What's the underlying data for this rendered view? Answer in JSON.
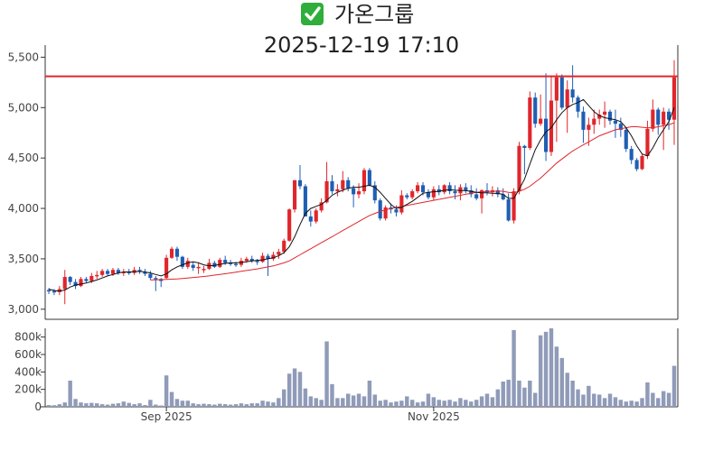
{
  "title": {
    "check_glyph": "✅",
    "name": "가온그룹",
    "datetime": "2025-12-19 17:10"
  },
  "colors": {
    "up": "#e0262b",
    "down": "#1f5fb4",
    "ma_short": "#111111",
    "ma_long": "#e0262b",
    "ref_line": "#e0262b",
    "volume": "#8f9bb8",
    "axis": "#333333",
    "check_bg": "#2fae3c"
  },
  "chart_data": [
    {
      "type": "candlestick",
      "title": "",
      "ylim": [
        2900,
        5620
      ],
      "y_ticks": [
        3000,
        3500,
        4000,
        4500,
        5000,
        5500
      ],
      "y_tick_labels": [
        "3,000",
        "3,500",
        "4,000",
        "4,500",
        "5,000",
        "5,500"
      ],
      "reference_line": 5310,
      "grid": false,
      "series_note": "daily OHLC, about 118 sessions",
      "ohlc": [
        [
          3190,
          3210,
          3150,
          3180
        ],
        [
          3180,
          3200,
          3140,
          3170
        ],
        [
          3170,
          3230,
          3140,
          3200
        ],
        [
          3200,
          3390,
          3050,
          3320
        ],
        [
          3320,
          3330,
          3240,
          3270
        ],
        [
          3270,
          3300,
          3200,
          3230
        ],
        [
          3230,
          3320,
          3220,
          3300
        ],
        [
          3300,
          3320,
          3260,
          3280
        ],
        [
          3280,
          3360,
          3260,
          3330
        ],
        [
          3330,
          3380,
          3300,
          3340
        ],
        [
          3340,
          3400,
          3320,
          3380
        ],
        [
          3380,
          3400,
          3330,
          3350
        ],
        [
          3350,
          3410,
          3330,
          3390
        ],
        [
          3390,
          3410,
          3340,
          3360
        ],
        [
          3360,
          3400,
          3330,
          3370
        ],
        [
          3370,
          3400,
          3340,
          3360
        ],
        [
          3360,
          3420,
          3340,
          3390
        ],
        [
          3390,
          3420,
          3350,
          3370
        ],
        [
          3370,
          3400,
          3330,
          3350
        ],
        [
          3350,
          3380,
          3290,
          3310
        ],
        [
          3310,
          3330,
          3180,
          3300
        ],
        [
          3300,
          3310,
          3220,
          3280
        ],
        [
          3310,
          3540,
          3300,
          3510
        ],
        [
          3510,
          3620,
          3500,
          3600
        ],
        [
          3600,
          3620,
          3480,
          3520
        ],
        [
          3520,
          3530,
          3400,
          3420
        ],
        [
          3420,
          3510,
          3400,
          3480
        ],
        [
          3440,
          3470,
          3380,
          3410
        ],
        [
          3410,
          3460,
          3350,
          3420
        ],
        [
          3390,
          3430,
          3360,
          3400
        ],
        [
          3400,
          3500,
          3390,
          3460
        ],
        [
          3460,
          3480,
          3410,
          3420
        ],
        [
          3420,
          3510,
          3410,
          3490
        ],
        [
          3490,
          3530,
          3440,
          3460
        ],
        [
          3460,
          3490,
          3430,
          3450
        ],
        [
          3450,
          3470,
          3420,
          3440
        ],
        [
          3440,
          3510,
          3420,
          3480
        ],
        [
          3480,
          3520,
          3460,
          3500
        ],
        [
          3500,
          3530,
          3460,
          3480
        ],
        [
          3480,
          3500,
          3440,
          3470
        ],
        [
          3470,
          3560,
          3460,
          3530
        ],
        [
          3530,
          3550,
          3330,
          3500
        ],
        [
          3500,
          3570,
          3480,
          3540
        ],
        [
          3540,
          3600,
          3500,
          3570
        ],
        [
          3570,
          3700,
          3550,
          3680
        ],
        [
          3680,
          4000,
          3670,
          3990
        ],
        [
          3990,
          4280,
          3960,
          4280
        ],
        [
          4280,
          4430,
          4190,
          4220
        ],
        [
          4220,
          4240,
          3920,
          3920
        ],
        [
          3920,
          3980,
          3820,
          3870
        ],
        [
          3870,
          4000,
          3850,
          3980
        ],
        [
          3980,
          4100,
          3960,
          4060
        ],
        [
          4060,
          4460,
          4050,
          4270
        ],
        [
          4270,
          4330,
          4140,
          4170
        ],
        [
          4170,
          4240,
          4120,
          4190
        ],
        [
          4190,
          4370,
          4160,
          4280
        ],
        [
          4280,
          4310,
          4170,
          4200
        ],
        [
          4200,
          4230,
          4010,
          4140
        ],
        [
          4140,
          4250,
          4100,
          4170
        ],
        [
          4170,
          4400,
          4140,
          4380
        ],
        [
          4380,
          4400,
          4220,
          4230
        ],
        [
          4230,
          4270,
          4050,
          4080
        ],
        [
          4080,
          4100,
          3880,
          3900
        ],
        [
          3900,
          4030,
          3880,
          4010
        ],
        [
          4010,
          4050,
          3950,
          3990
        ],
        [
          3990,
          4030,
          3920,
          3960
        ],
        [
          3960,
          4180,
          3940,
          4130
        ],
        [
          4130,
          4150,
          4090,
          4110
        ],
        [
          4110,
          4190,
          4090,
          4170
        ],
        [
          4170,
          4260,
          4150,
          4230
        ],
        [
          4230,
          4260,
          4130,
          4160
        ],
        [
          4160,
          4190,
          4090,
          4110
        ],
        [
          4110,
          4220,
          4080,
          4190
        ],
        [
          4190,
          4230,
          4130,
          4160
        ],
        [
          4160,
          4240,
          4140,
          4230
        ],
        [
          4230,
          4260,
          4140,
          4170
        ],
        [
          4170,
          4230,
          4090,
          4150
        ],
        [
          4150,
          4240,
          4080,
          4210
        ],
        [
          4210,
          4250,
          4150,
          4180
        ],
        [
          4180,
          4230,
          4110,
          4140
        ],
        [
          4140,
          4200,
          4080,
          4100
        ],
        [
          4100,
          4190,
          3950,
          4180
        ],
        [
          4180,
          4250,
          4130,
          4160
        ],
        [
          4160,
          4220,
          4120,
          4180
        ],
        [
          4180,
          4210,
          4110,
          4140
        ],
        [
          4140,
          4200,
          4080,
          4090
        ],
        [
          4090,
          4150,
          3870,
          3880
        ],
        [
          3880,
          4200,
          3850,
          4170
        ],
        [
          4170,
          4660,
          4140,
          4620
        ],
        [
          4620,
          4630,
          4340,
          4600
        ],
        [
          4600,
          5160,
          4580,
          5100
        ],
        [
          5100,
          5150,
          4800,
          4840
        ],
        [
          4840,
          5130,
          4820,
          4890
        ],
        [
          4890,
          5340,
          4470,
          4560
        ],
        [
          4560,
          5320,
          4520,
          5070
        ],
        [
          5070,
          5340,
          4660,
          5300
        ],
        [
          5300,
          5330,
          4980,
          5000
        ],
        [
          5000,
          5270,
          4750,
          5180
        ],
        [
          5180,
          5420,
          5050,
          5100
        ],
        [
          5100,
          5120,
          4900,
          4960
        ],
        [
          4960,
          5010,
          4650,
          4780
        ],
        [
          4780,
          4900,
          4620,
          4830
        ],
        [
          4830,
          4980,
          4740,
          4890
        ],
        [
          4890,
          4980,
          4830,
          4930
        ],
        [
          4930,
          5060,
          4800,
          4960
        ],
        [
          4960,
          4980,
          4830,
          4870
        ],
        [
          4870,
          4980,
          4700,
          4840
        ],
        [
          4840,
          4900,
          4710,
          4780
        ],
        [
          4780,
          4800,
          4560,
          4590
        ],
        [
          4590,
          4620,
          4440,
          4480
        ],
        [
          4480,
          4500,
          4370,
          4390
        ],
        [
          4390,
          4540,
          4380,
          4520
        ],
        [
          4520,
          4870,
          4490,
          4790
        ],
        [
          4790,
          5080,
          4760,
          4980
        ],
        [
          4980,
          5000,
          4730,
          4830
        ],
        [
          4830,
          5000,
          4580,
          4960
        ],
        [
          4960,
          4990,
          4780,
          4880
        ],
        [
          4880,
          5470,
          4630,
          5300
        ]
      ],
      "ma_short": [
        3200,
        3185,
        3180,
        3190,
        3220,
        3240,
        3250,
        3260,
        3275,
        3290,
        3310,
        3330,
        3345,
        3360,
        3370,
        3370,
        3372,
        3375,
        3370,
        3360,
        3345,
        3330,
        3350,
        3390,
        3420,
        3440,
        3460,
        3470,
        3460,
        3440,
        3430,
        3435,
        3445,
        3455,
        3460,
        3460,
        3465,
        3472,
        3480,
        3485,
        3490,
        3500,
        3510,
        3530,
        3560,
        3620,
        3720,
        3840,
        3950,
        4000,
        4020,
        4040,
        4080,
        4130,
        4160,
        4180,
        4200,
        4210,
        4210,
        4220,
        4230,
        4210,
        4160,
        4100,
        4040,
        4000,
        4010,
        4040,
        4070,
        4110,
        4150,
        4160,
        4165,
        4170,
        4180,
        4185,
        4180,
        4178,
        4176,
        4170,
        4160,
        4155,
        4155,
        4150,
        4148,
        4140,
        4100,
        4100,
        4190,
        4290,
        4440,
        4580,
        4680,
        4760,
        4800,
        4880,
        4950,
        5000,
        5030,
        5050,
        5080,
        5020,
        4960,
        4920,
        4900,
        4890,
        4880,
        4860,
        4800,
        4720,
        4620,
        4540,
        4520,
        4600,
        4700,
        4780,
        4860,
        5000
      ],
      "ma_long": [
        null,
        null,
        null,
        null,
        null,
        null,
        null,
        null,
        null,
        null,
        null,
        null,
        null,
        null,
        null,
        null,
        null,
        null,
        null,
        3290,
        3292,
        3294,
        3296,
        3298,
        3300,
        3305,
        3310,
        3315,
        3320,
        3325,
        3330,
        3338,
        3345,
        3352,
        3360,
        3368,
        3376,
        3384,
        3392,
        3400,
        3410,
        3420,
        3430,
        3445,
        3460,
        3480,
        3510,
        3540,
        3570,
        3600,
        3630,
        3660,
        3690,
        3720,
        3750,
        3780,
        3810,
        3840,
        3870,
        3900,
        3930,
        3950,
        3970,
        3985,
        4000,
        4010,
        4020,
        4030,
        4040,
        4050,
        4060,
        4070,
        4080,
        4090,
        4100,
        4110,
        4120,
        4130,
        4140,
        4150,
        4160,
        4165,
        4168,
        4170,
        4172,
        4170,
        4160,
        4155,
        4170,
        4190,
        4220,
        4260,
        4300,
        4350,
        4400,
        4450,
        4490,
        4530,
        4570,
        4600,
        4630,
        4660,
        4690,
        4720,
        4740,
        4760,
        4780,
        4790,
        4800,
        4810,
        4810,
        4805,
        4800,
        4800,
        4810,
        4820,
        4830,
        4850
      ]
    },
    {
      "type": "bar",
      "title": "",
      "ylim": [
        0,
        900000
      ],
      "y_ticks": [
        0,
        200000,
        400000,
        600000,
        800000
      ],
      "y_tick_labels": [
        "0",
        "200k",
        "400k",
        "600k",
        "800k"
      ],
      "x_tick_labels": [
        "Sep 2025",
        "Nov 2025"
      ],
      "x_tick_index": [
        22,
        72
      ],
      "values": [
        20000,
        18000,
        30000,
        50000,
        300000,
        90000,
        50000,
        40000,
        45000,
        40000,
        30000,
        25000,
        35000,
        40000,
        60000,
        45000,
        30000,
        40000,
        20000,
        80000,
        25000,
        15000,
        360000,
        170000,
        90000,
        70000,
        70000,
        40000,
        30000,
        35000,
        30000,
        25000,
        35000,
        30000,
        25000,
        30000,
        40000,
        30000,
        40000,
        40000,
        70000,
        60000,
        50000,
        100000,
        200000,
        380000,
        440000,
        400000,
        210000,
        120000,
        100000,
        80000,
        750000,
        260000,
        100000,
        100000,
        150000,
        130000,
        150000,
        120000,
        300000,
        140000,
        70000,
        80000,
        50000,
        60000,
        70000,
        120000,
        80000,
        50000,
        60000,
        150000,
        110000,
        80000,
        70000,
        80000,
        60000,
        100000,
        80000,
        60000,
        80000,
        120000,
        150000,
        110000,
        200000,
        290000,
        310000,
        880000,
        300000,
        220000,
        300000,
        160000,
        820000,
        860000,
        900000,
        690000,
        560000,
        390000,
        300000,
        200000,
        140000,
        240000,
        150000,
        140000,
        100000,
        150000,
        110000,
        80000,
        60000,
        70000,
        60000,
        100000,
        280000,
        160000,
        100000,
        180000,
        160000,
        470000
      ]
    }
  ]
}
